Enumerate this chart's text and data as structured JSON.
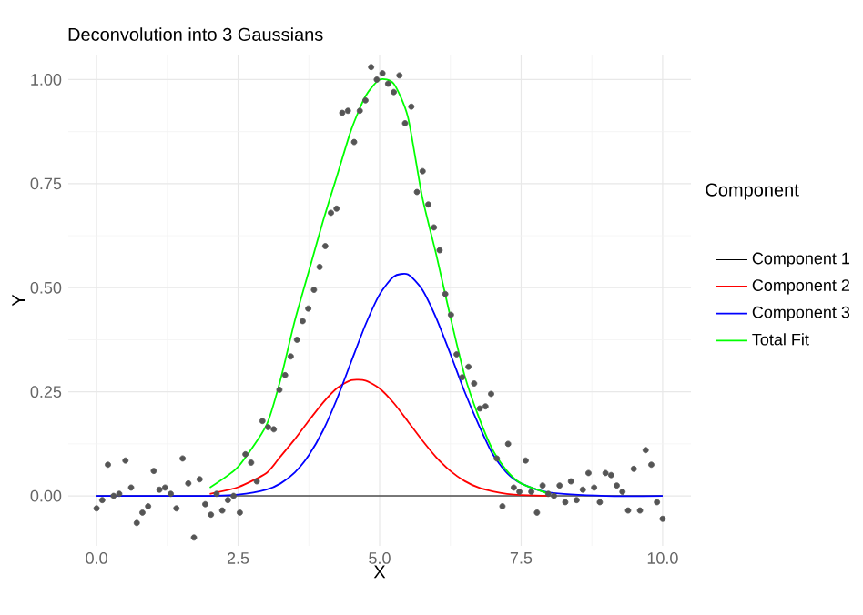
{
  "chart_data": {
    "type": "line",
    "title": "Deconvolution into 3 Gaussians",
    "xlabel": "X",
    "ylabel": "Y",
    "legend_title": "Component",
    "xlim": [
      -0.5,
      10.5
    ],
    "ylim": [
      -0.12,
      1.06
    ],
    "xticks": [
      {
        "value": 0,
        "label": "0.0"
      },
      {
        "value": 2.5,
        "label": "2.5"
      },
      {
        "value": 5,
        "label": "5.0"
      },
      {
        "value": 7.5,
        "label": "7.5"
      },
      {
        "value": 10,
        "label": "10.0"
      }
    ],
    "yticks": [
      {
        "value": 0,
        "label": "0.00"
      },
      {
        "value": 0.25,
        "label": "0.25"
      },
      {
        "value": 0.5,
        "label": "0.50"
      },
      {
        "value": 0.75,
        "label": "0.75"
      },
      {
        "value": 1,
        "label": "1.00"
      }
    ],
    "grid": true,
    "legend": "right",
    "series": [
      {
        "type": "scatter",
        "color": "#555555",
        "x": [
          0,
          0.1,
          0.2,
          0.3,
          0.4,
          0.51,
          0.61,
          0.71,
          0.81,
          0.91,
          1.01,
          1.11,
          1.21,
          1.31,
          1.41,
          1.52,
          1.62,
          1.72,
          1.82,
          1.92,
          2.02,
          2.12,
          2.22,
          2.32,
          2.42,
          2.53,
          2.63,
          2.73,
          2.83,
          2.93,
          3.03,
          3.13,
          3.23,
          3.33,
          3.43,
          3.54,
          3.64,
          3.74,
          3.84,
          3.94,
          4.04,
          4.14,
          4.24,
          4.34,
          4.44,
          4.55,
          4.65,
          4.75,
          4.85,
          4.95,
          5.05,
          5.15,
          5.25,
          5.35,
          5.45,
          5.56,
          5.66,
          5.76,
          5.86,
          5.96,
          6.06,
          6.16,
          6.26,
          6.36,
          6.46,
          6.57,
          6.67,
          6.77,
          6.87,
          6.97,
          7.07,
          7.17,
          7.27,
          7.37,
          7.47,
          7.58,
          7.68,
          7.78,
          7.88,
          7.98,
          8.08,
          8.18,
          8.28,
          8.38,
          8.48,
          8.59,
          8.69,
          8.79,
          8.89,
          8.99,
          9.09,
          9.19,
          9.29,
          9.39,
          9.49,
          9.6,
          9.7,
          9.8,
          9.9,
          10
        ],
        "values": [
          -0.03,
          -0.01,
          0.075,
          0,
          0.005,
          0.085,
          0.02,
          -0.065,
          -0.04,
          -0.025,
          0.06,
          0.015,
          0.02,
          0.005,
          -0.03,
          0.09,
          0.03,
          -0.1,
          0.04,
          -0.02,
          -0.045,
          0.005,
          -0.035,
          -0.01,
          0,
          -0.04,
          0.1,
          0.08,
          0.035,
          0.18,
          0.165,
          0.16,
          0.255,
          0.29,
          0.335,
          0.375,
          0.42,
          0.45,
          0.495,
          0.55,
          0.6,
          0.68,
          0.69,
          0.92,
          0.925,
          0.85,
          0.925,
          0.95,
          1.03,
          1,
          1.015,
          0.99,
          0.97,
          1.01,
          0.895,
          0.935,
          0.73,
          0.78,
          0.7,
          0.645,
          0.59,
          0.485,
          0.435,
          0.34,
          0.285,
          0.31,
          0.27,
          0.21,
          0.215,
          0.245,
          0.09,
          -0.025,
          0.125,
          0.02,
          0.01,
          0.085,
          0.01,
          -0.04,
          0.025,
          0.005,
          0,
          0.025,
          -0.015,
          0.035,
          -0.01,
          0.015,
          0.055,
          0.02,
          -0.015,
          0.055,
          0.05,
          0.025,
          0.01,
          -0.035,
          0.065,
          -0.035,
          0.11,
          0.075,
          -0.015,
          -0.055
        ]
      },
      {
        "name": "Component 1",
        "color": "#000000",
        "x": [
          0,
          1,
          2,
          2.5,
          3,
          3.25,
          3.5,
          3.75,
          4,
          4.25,
          4.5,
          4.75,
          5,
          5.25,
          5.5,
          5.75,
          6,
          6.25,
          6.5,
          6.75,
          7,
          7.25,
          7.5,
          8,
          9,
          10
        ],
        "values": [
          0,
          0,
          0,
          0,
          0,
          0,
          0,
          0,
          0,
          0,
          0,
          0,
          0,
          0,
          0,
          0,
          0,
          0,
          0,
          0,
          0,
          0,
          0,
          0,
          0,
          0
        ]
      },
      {
        "name": "Component 2",
        "color": "#ff0000",
        "x": [
          2,
          2.5,
          3,
          3.25,
          3.5,
          3.75,
          4,
          4.25,
          4.5,
          4.75,
          5,
          5.25,
          5.5,
          5.75,
          6,
          6.25,
          6.5,
          6.75,
          7,
          7.25,
          7.5,
          8
        ],
        "values": [
          0.005,
          0.021,
          0.055,
          0.095,
          0.136,
          0.181,
          0.224,
          0.259,
          0.278,
          0.277,
          0.258,
          0.223,
          0.179,
          0.134,
          0.093,
          0.06,
          0.036,
          0.02,
          0.011,
          0.005,
          0.002,
          0
        ]
      },
      {
        "name": "Component 3",
        "color": "#0000ff",
        "x": [
          0,
          1,
          2,
          2.5,
          3,
          3.25,
          3.5,
          3.75,
          4,
          4.25,
          4.5,
          4.75,
          5,
          5.25,
          5.5,
          5.75,
          6,
          6.25,
          6.5,
          6.75,
          7,
          7.25,
          7.5,
          8,
          9,
          10
        ],
        "values": [
          0,
          0,
          0,
          0.003,
          0.015,
          0.03,
          0.056,
          0.098,
          0.157,
          0.234,
          0.323,
          0.411,
          0.484,
          0.527,
          0.532,
          0.496,
          0.427,
          0.341,
          0.251,
          0.171,
          0.1,
          0.055,
          0.03,
          0.008,
          0,
          0
        ]
      },
      {
        "name": "Total Fit",
        "color": "#00ff00",
        "x": [
          2,
          2.5,
          3,
          3.25,
          3.5,
          3.75,
          4,
          4.25,
          4.5,
          4.75,
          5,
          5.25,
          5.5,
          5.75,
          6,
          6.25,
          6.5,
          6.75,
          7,
          7.25,
          7.5,
          8
        ],
        "values": [
          0.02,
          0.07,
          0.17,
          0.28,
          0.42,
          0.54,
          0.66,
          0.77,
          0.88,
          0.96,
          1.0,
          0.99,
          0.91,
          0.72,
          0.58,
          0.43,
          0.29,
          0.19,
          0.11,
          0.06,
          0.03,
          0.005
        ]
      }
    ]
  }
}
